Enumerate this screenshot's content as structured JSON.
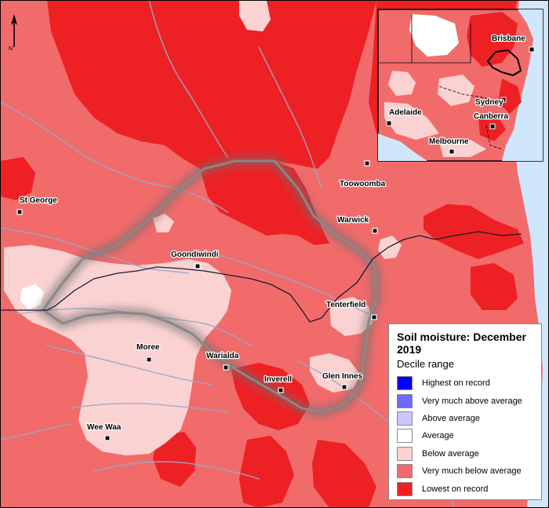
{
  "legend": {
    "title": "Soil moisture: December 2019",
    "subtitle": "Decile range",
    "items": [
      {
        "label": "Highest on record",
        "color": "#0000ff"
      },
      {
        "label": "Very much above average",
        "color": "#6b6bff"
      },
      {
        "label": "Above average",
        "color": "#c8c8ff"
      },
      {
        "label": "Average",
        "color": "#ffffff"
      },
      {
        "label": "Below average",
        "color": "#fbd2d2"
      },
      {
        "label": "Very much below average",
        "color": "#f26b6b"
      },
      {
        "label": "Lowest on record",
        "color": "#ed2024"
      }
    ]
  },
  "places": [
    {
      "name": "Toowoomba"
    },
    {
      "name": "St George"
    },
    {
      "name": "Warwick"
    },
    {
      "name": "Goondiwindi"
    },
    {
      "name": "Tenterfield"
    },
    {
      "name": "Moree"
    },
    {
      "name": "Warialda"
    },
    {
      "name": "Inverell"
    },
    {
      "name": "Glen Innes"
    },
    {
      "name": "Wee Waa"
    }
  ],
  "inset": {
    "cities": [
      {
        "name": "Brisbane"
      },
      {
        "name": "Sydney"
      },
      {
        "name": "Canberra"
      },
      {
        "name": "Adelaide"
      },
      {
        "name": "Melbourne"
      }
    ]
  },
  "north_arrow": {
    "label": "N"
  },
  "colors": {
    "ocean": "#cfe6fb",
    "river": "#9aa8c8",
    "border": "#1a1a2e",
    "focus_boundary": "#808080"
  }
}
